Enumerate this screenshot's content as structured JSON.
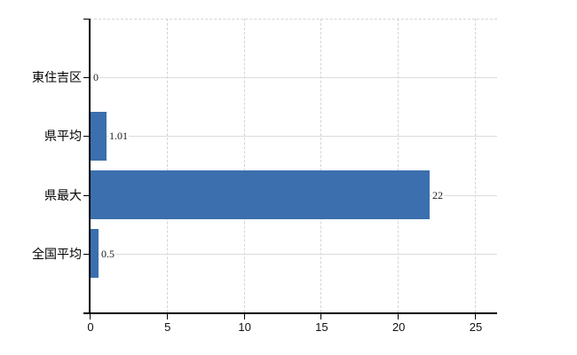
{
  "chart": {
    "background_color": "#ffffff"
  },
  "chart_data": {
    "type": "bar",
    "orientation": "horizontal",
    "title": "",
    "xlabel": "",
    "ylabel": "",
    "categories": [
      "東住吉区",
      "県平均",
      "県最大",
      "全国平均"
    ],
    "values": [
      0,
      1.01,
      22,
      0.5
    ],
    "value_labels": [
      "0",
      "1.01",
      "22",
      "0.5"
    ],
    "xticks": [
      0,
      5,
      10,
      15,
      20,
      25
    ],
    "xtick_labels": [
      "0",
      "5",
      "10",
      "15",
      "20",
      "25"
    ],
    "xlim": [
      0,
      26.4
    ],
    "grid": "on",
    "legend": "none",
    "bar_color": "#3c6fae",
    "axis_color": "#000000",
    "horizontal_grid_color": "#d7ded7",
    "vertical_grid_color": "#d9d1d9",
    "value_label_color": "#1a1a1a",
    "tick_label_color": "#111111"
  }
}
